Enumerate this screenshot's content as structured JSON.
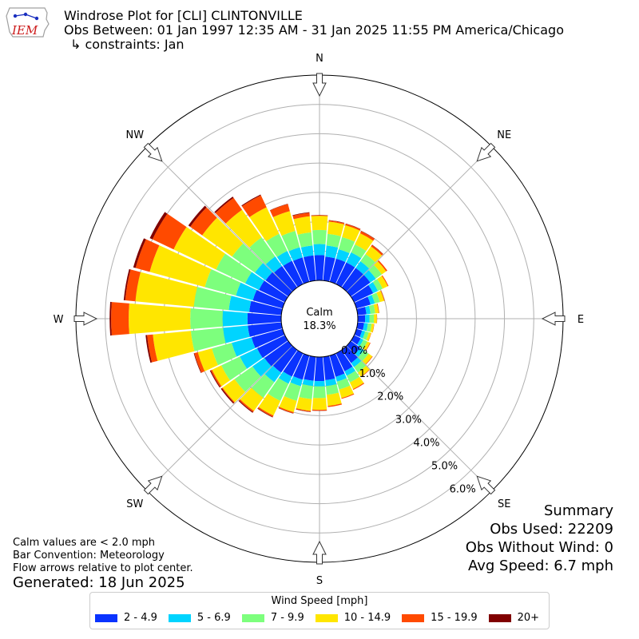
{
  "header": {
    "title": "Windrose Plot for [CLI] CLINTONVILLE",
    "subtitle": "Obs Between: 01 Jan 1997 12:35 AM - 31 Jan 2025 11:55 PM America/Chicago",
    "constraints": "↳ constraints: Jan"
  },
  "logo": {
    "text": "IEM",
    "icon": "iowa-state-outline-logo"
  },
  "summary": {
    "heading": "Summary",
    "obs_used": "Obs Used: 22209",
    "obs_without_wind": "Obs Without Wind: 0",
    "avg_speed": "Avg Speed: 6.7 mph"
  },
  "notes": {
    "calm": "Calm values are < 2.0 mph",
    "convention": "Bar Convention: Meteorology",
    "arrows": "Flow arrows relative to plot center.",
    "generated": "Generated: 18 Jun 2025"
  },
  "legend": {
    "title": "Wind Speed [mph]",
    "items": [
      {
        "label": "2 - 4.9",
        "color": "#0a33ff"
      },
      {
        "label": "5 - 6.9",
        "color": "#00d4ff"
      },
      {
        "label": "7 - 9.9",
        "color": "#7dff7d"
      },
      {
        "label": "10 - 14.9",
        "color": "#ffe600"
      },
      {
        "label": "15 - 19.9",
        "color": "#ff4a00"
      },
      {
        "label": "20+",
        "color": "#800000"
      }
    ]
  },
  "chart_data": {
    "type": "windrose",
    "calm_label": "Calm",
    "calm_percent": "18.3%",
    "radial_ticks": [
      "0.0%",
      "1.0%",
      "2.0%",
      "3.0%",
      "4.0%",
      "5.0%",
      "6.0%"
    ],
    "radial_tick_values": [
      0,
      1,
      2,
      3,
      4,
      5,
      6
    ],
    "directions": [
      "N",
      "NE",
      "E",
      "SE",
      "S",
      "SW",
      "W",
      "NW"
    ],
    "bin_width_deg": 10,
    "bin_centers_deg": [
      0,
      10,
      20,
      30,
      40,
      50,
      60,
      70,
      80,
      90,
      100,
      110,
      120,
      130,
      140,
      150,
      160,
      170,
      180,
      190,
      200,
      210,
      220,
      230,
      240,
      250,
      260,
      270,
      280,
      290,
      300,
      310,
      320,
      330,
      340,
      350
    ],
    "speed_bins": [
      "2 - 4.9",
      "5 - 6.9",
      "7 - 9.9",
      "10 - 14.9",
      "15 - 19.9",
      "20+"
    ],
    "colors": [
      "#0a33ff",
      "#00d4ff",
      "#7dff7d",
      "#ffe600",
      "#ff4a00",
      "#800000"
    ],
    "cumulative_percent": [
      [
        0.86,
        1.24,
        1.72,
        2.2,
        2.22,
        2.23
      ],
      [
        0.82,
        1.2,
        1.6,
        2.02,
        2.06,
        2.07
      ],
      [
        0.82,
        1.15,
        1.58,
        2.0,
        2.05,
        2.06
      ],
      [
        0.82,
        1.2,
        1.5,
        1.92,
        2.0,
        2.01
      ],
      [
        0.82,
        1.1,
        1.4,
        1.72,
        1.78,
        1.79
      ],
      [
        0.82,
        1.05,
        1.3,
        1.48,
        1.53,
        1.53
      ],
      [
        0.72,
        0.9,
        1.08,
        1.27,
        1.3,
        1.3
      ],
      [
        0.5,
        0.65,
        0.83,
        0.98,
        1.0,
        1.0
      ],
      [
        0.3,
        0.44,
        0.6,
        0.72,
        0.74,
        0.74
      ],
      [
        0.25,
        0.4,
        0.55,
        0.65,
        0.66,
        0.66
      ],
      [
        0.22,
        0.35,
        0.48,
        0.56,
        0.57,
        0.57
      ],
      [
        0.2,
        0.31,
        0.44,
        0.52,
        0.53,
        0.53
      ],
      [
        0.25,
        0.35,
        0.5,
        0.6,
        0.62,
        0.62
      ],
      [
        0.4,
        0.55,
        0.75,
        0.9,
        0.92,
        0.92
      ],
      [
        0.55,
        0.72,
        0.95,
        1.12,
        1.14,
        1.14
      ],
      [
        0.68,
        0.85,
        1.1,
        1.35,
        1.38,
        1.38
      ],
      [
        0.75,
        0.92,
        1.2,
        1.5,
        1.53,
        1.53
      ],
      [
        0.8,
        1.0,
        1.3,
        1.68,
        1.72,
        1.72
      ],
      [
        0.82,
        1.0,
        1.4,
        1.8,
        1.83,
        1.84
      ],
      [
        0.82,
        1.0,
        1.45,
        1.85,
        1.88,
        1.89
      ],
      [
        0.85,
        1.08,
        1.6,
        2.0,
        2.04,
        2.05
      ],
      [
        0.88,
        1.15,
        1.8,
        2.35,
        2.4,
        2.42
      ],
      [
        0.95,
        1.35,
        2.0,
        2.55,
        2.6,
        2.63
      ],
      [
        1.0,
        1.5,
        2.25,
        2.75,
        2.78,
        2.82
      ],
      [
        1.05,
        1.7,
        2.4,
        2.75,
        2.8,
        2.83
      ],
      [
        1.1,
        1.8,
        2.5,
        3.0,
        3.12,
        3.14
      ],
      [
        1.15,
        2.0,
        3.1,
        4.4,
        4.6,
        4.65
      ],
      [
        1.15,
        2.0,
        3.1,
        5.2,
        5.8,
        5.85
      ],
      [
        1.1,
        1.8,
        3.0,
        5.0,
        5.35,
        5.4
      ],
      [
        1.05,
        1.65,
        2.75,
        4.7,
        5.2,
        5.28
      ],
      [
        0.98,
        1.5,
        2.6,
        4.2,
        5.0,
        5.1
      ],
      [
        0.95,
        1.4,
        2.35,
        3.6,
        4.1,
        4.18
      ],
      [
        0.9,
        1.3,
        2.1,
        3.25,
        3.75,
        3.8
      ],
      [
        0.88,
        1.25,
        1.9,
        2.9,
        3.35,
        3.38
      ],
      [
        0.86,
        1.22,
        1.8,
        2.5,
        2.75,
        2.76
      ],
      [
        0.86,
        1.2,
        1.65,
        2.2,
        2.32,
        2.34
      ]
    ]
  }
}
